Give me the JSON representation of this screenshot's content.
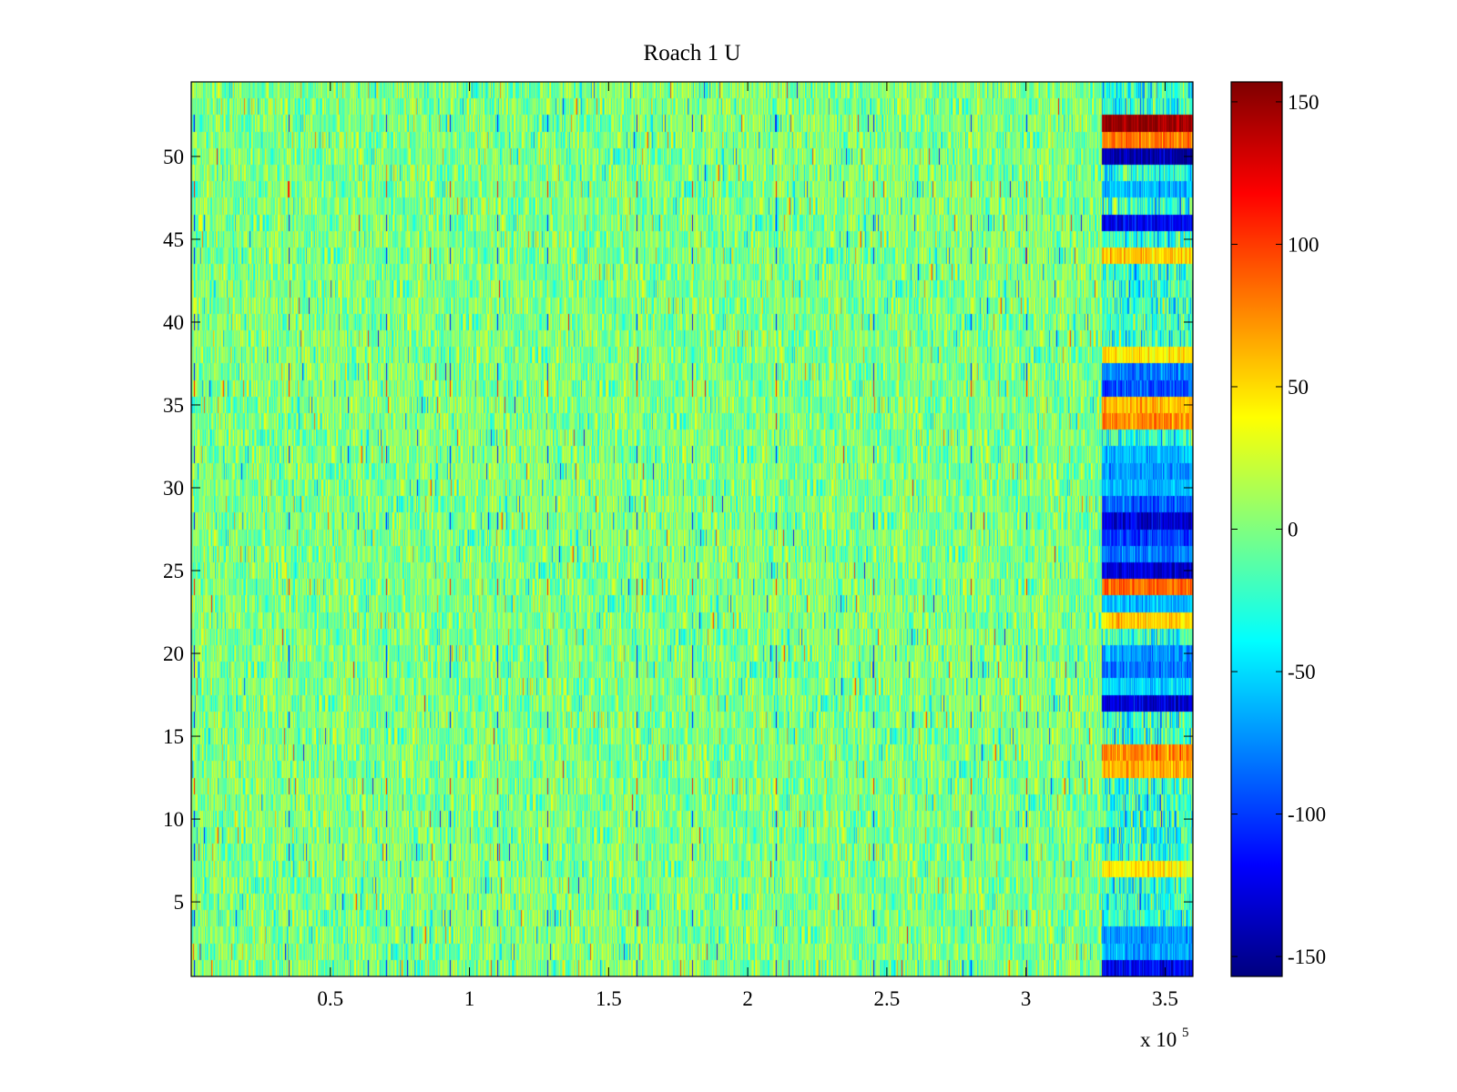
{
  "chart_data": {
    "type": "heatmap",
    "title": "Roach 1 U",
    "xlabel": "",
    "ylabel": "",
    "xlim": [
      0,
      360000
    ],
    "ylim": [
      0.5,
      54.5
    ],
    "x_exponent_label": "x 10",
    "x_exponent_power": "5",
    "x_ticks": [
      50000,
      100000,
      150000,
      200000,
      250000,
      300000,
      350000
    ],
    "x_tick_labels": [
      "0.5",
      "1",
      "1.5",
      "2",
      "2.5",
      "3",
      "3.5"
    ],
    "y_ticks": [
      5,
      10,
      15,
      20,
      25,
      30,
      35,
      40,
      45,
      50
    ],
    "y_tick_labels": [
      "5",
      "10",
      "15",
      "20",
      "25",
      "30",
      "35",
      "40",
      "45",
      "50"
    ],
    "rows": 54,
    "colormap": "jet",
    "clim": [
      -157,
      157
    ],
    "colorbar": {
      "ticks": [
        150,
        100,
        50,
        0,
        -50,
        -100,
        -150
      ],
      "tick_labels": [
        "150",
        "100",
        "50",
        "0",
        "-50",
        "-100",
        "-150"
      ]
    },
    "regime_change_x": 327000,
    "background_level": 0,
    "background_noise": 22,
    "high_activity_rows": [
      {
        "row": 52,
        "level": 150
      },
      {
        "row": 51,
        "level": 80
      },
      {
        "row": 50,
        "level": -145
      },
      {
        "row": 48,
        "level": -60
      },
      {
        "row": 46,
        "level": -120
      },
      {
        "row": 44,
        "level": 55
      },
      {
        "row": 38,
        "level": 45
      },
      {
        "row": 37,
        "level": -80
      },
      {
        "row": 36,
        "level": -90
      },
      {
        "row": 35,
        "level": 60
      },
      {
        "row": 34,
        "level": 75
      },
      {
        "row": 32,
        "level": -60
      },
      {
        "row": 31,
        "level": -70
      },
      {
        "row": 30,
        "level": -60
      },
      {
        "row": 29,
        "level": -90
      },
      {
        "row": 28,
        "level": -130
      },
      {
        "row": 27,
        "level": -100
      },
      {
        "row": 26,
        "level": -80
      },
      {
        "row": 25,
        "level": -130
      },
      {
        "row": 24,
        "level": 85
      },
      {
        "row": 23,
        "level": -60
      },
      {
        "row": 22,
        "level": 55
      },
      {
        "row": 20,
        "level": -70
      },
      {
        "row": 19,
        "level": -80
      },
      {
        "row": 18,
        "level": -50
      },
      {
        "row": 17,
        "level": -130
      },
      {
        "row": 14,
        "level": 75
      },
      {
        "row": 13,
        "level": 60
      },
      {
        "row": 7,
        "level": 45
      },
      {
        "row": 3,
        "level": -70
      },
      {
        "row": 2,
        "level": -65
      },
      {
        "row": 1,
        "level": -120
      }
    ],
    "periodic_spike_x": [
      1000,
      35000,
      70000,
      93000,
      110000,
      128000,
      160000,
      180000,
      210000,
      245000,
      280000,
      300000
    ]
  }
}
